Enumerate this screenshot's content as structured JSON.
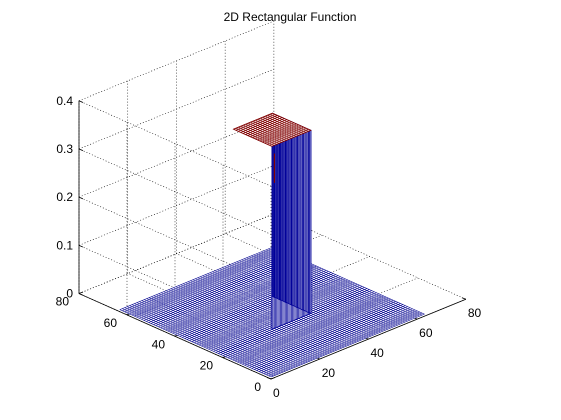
{
  "chart_data": {
    "type": "surface",
    "title": "2D Rectangular Function",
    "xlabel": "",
    "ylabel": "",
    "zlabel": "",
    "xlim": [
      0,
      80
    ],
    "ylim": [
      0,
      80
    ],
    "zlim": [
      0,
      0.4
    ],
    "x_ticks": [
      "0",
      "20",
      "40",
      "60",
      "80"
    ],
    "y_ticks": [
      "0",
      "20",
      "40",
      "60",
      "80"
    ],
    "z_ticks": [
      "0",
      "0.1",
      "0.2",
      "0.3",
      "0.4"
    ],
    "grid": true,
    "box": false,
    "mesh_x_range": [
      1,
      64
    ],
    "mesh_y_range": [
      1,
      64
    ],
    "pulse_x_range": [
      24,
      40
    ],
    "pulse_y_range": [
      24,
      40
    ],
    "pulse_height": 0.38,
    "base_height": 0,
    "colormap": "jet",
    "colors": {
      "base_mesh": "#00008f",
      "top_mesh": "#800000",
      "pulse_side": "#000099",
      "face": "#ffffff",
      "grid": "#000000"
    }
  }
}
